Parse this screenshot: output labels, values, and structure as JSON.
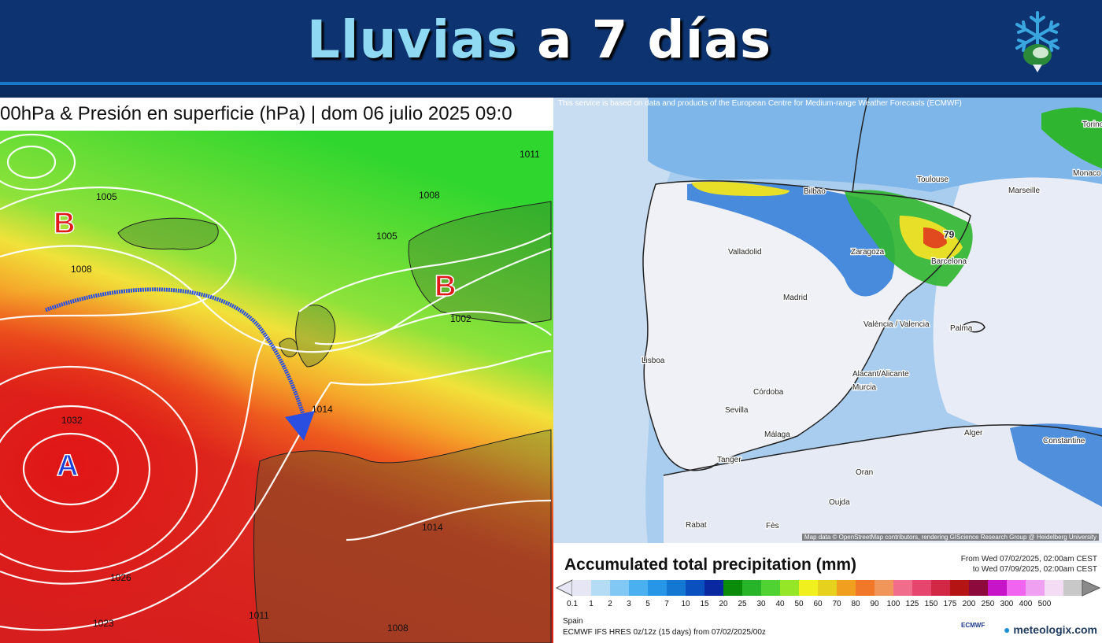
{
  "header": {
    "title_part1": "Lluvias",
    "title_part2": "a 7 días",
    "logo_icon": "snowflake-icon"
  },
  "left_map": {
    "caption": "00hPa & Presión en superficie (hPa) | dom 06 julio 2025 09:0",
    "isobar_labels": [
      "1005",
      "1008",
      "1011",
      "1008",
      "1005",
      "1002",
      "1014",
      "1032",
      "1026",
      "1023",
      "1011",
      "1014",
      "1008"
    ],
    "pressure_centers": [
      {
        "label": "B",
        "color": "#e01a1a"
      },
      {
        "label": "B",
        "color": "#e01a1a"
      },
      {
        "label": "A",
        "color": "#1a3fd6"
      }
    ],
    "arrow_color": "#2a4fe0",
    "colors": {
      "low": "#3cd43c",
      "mid": "#f5c22a",
      "high": "#d9241e"
    }
  },
  "right_map": {
    "notice": "This service is based on data and products of the European Centre for Medium-range Weather Forecasts (ECMWF)",
    "attribution": "Map data © OpenStreetMap contributors, rendering GIScience Research Group @ Heidelberg University",
    "cities": [
      "Bilbao",
      "Toulouse",
      "Marseille",
      "Monaco",
      "Torino",
      "Valladolid",
      "Zaragoza",
      "Barcelona",
      "Madrid",
      "Palma",
      "Lisboa",
      "València / Valencia",
      "Alacant/Alicante",
      "Murcia",
      "Córdoba",
      "Sevilla",
      "Málaga",
      "Tanger",
      "Alger",
      "Constantine",
      "Oran",
      "Oujda",
      "Rabat",
      "Fès"
    ],
    "max_value_label": "79"
  },
  "legend": {
    "title": "Accumulated total precipitation (mm)",
    "date_from": "From Wed 07/02/2025, 02:00am CEST",
    "date_to": "to Wed 07/09/2025, 02:00am CEST",
    "ticks": [
      "0.1",
      "1",
      "2",
      "3",
      "5",
      "7",
      "10",
      "15",
      "20",
      "25",
      "30",
      "40",
      "50",
      "60",
      "70",
      "80",
      "90",
      "100",
      "125",
      "150",
      "175",
      "200",
      "250",
      "300",
      "400",
      "500"
    ],
    "colors": [
      "#e6e6f5",
      "#b4dcf5",
      "#82c8f5",
      "#4bb0f0",
      "#2896e6",
      "#1478d2",
      "#0a50be",
      "#0a28a0",
      "#0a8c0a",
      "#28b428",
      "#50d232",
      "#96e628",
      "#f0f01e",
      "#e6d21e",
      "#f0a01e",
      "#f07828",
      "#f0965a",
      "#f06e8c",
      "#e6466e",
      "#d22846",
      "#b41414",
      "#8c0a3c",
      "#c814c8",
      "#f064f0",
      "#f0a0f0",
      "#f5dcf5",
      "#c8c8c8"
    ],
    "region": "Spain",
    "model": "ECMWF IFS HRES 0z/12z (15 days) from 07/02/2025/00z",
    "brand": "meteologix.com",
    "ecmwf_label": "ECMWF"
  }
}
